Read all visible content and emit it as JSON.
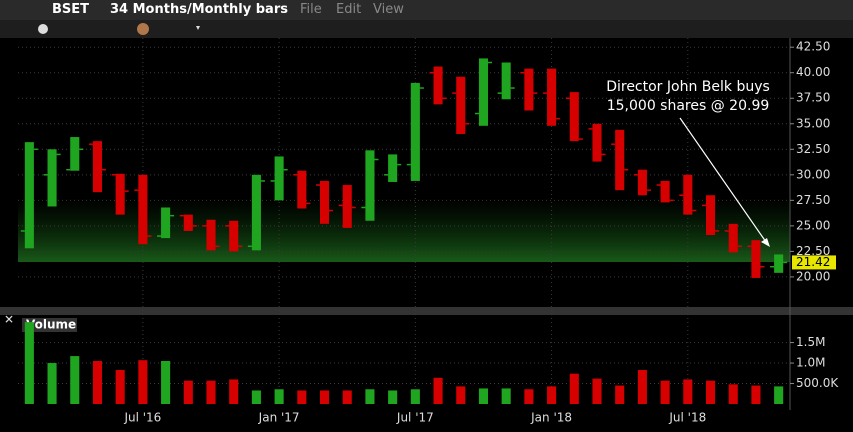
{
  "toolbar": {
    "symbol": "BSET",
    "period": "34 Months/Monthly bars",
    "menu": [
      "File",
      "Edit",
      "View"
    ]
  },
  "chart_data": {
    "type": "candlestick",
    "annotation": [
      "Director John Belk buys",
      "15,000 shares @ 20.99"
    ],
    "categories": [
      null,
      null,
      null,
      null,
      null,
      "Jul '16",
      null,
      null,
      null,
      null,
      null,
      "Jan '17",
      null,
      null,
      null,
      null,
      null,
      "Jul '17",
      null,
      null,
      null,
      null,
      null,
      "Jan '18",
      null,
      null,
      null,
      null,
      null,
      "Jul '18",
      null,
      null,
      null,
      null
    ],
    "open": [
      24.5,
      30.0,
      30.5,
      33.0,
      30.0,
      28.5,
      24.0,
      26.0,
      25.0,
      25.0,
      23.0,
      29.4,
      30.0,
      29.0,
      27.0,
      26.8,
      30.0,
      31.0,
      40.0,
      38.0,
      36.0,
      38.0,
      40.0,
      38.0,
      37.5,
      34.5,
      33.0,
      30.0,
      29.0,
      28.0,
      27.0,
      24.5,
      23.0,
      21.0
    ],
    "high": [
      33.2,
      32.5,
      33.7,
      33.3,
      30.1,
      30.0,
      26.8,
      26.1,
      25.6,
      25.5,
      30.0,
      31.8,
      30.4,
      29.4,
      29.0,
      32.4,
      32.0,
      39.0,
      40.6,
      39.6,
      41.4,
      41.0,
      40.4,
      40.4,
      38.1,
      35.0,
      34.4,
      30.5,
      29.4,
      30.0,
      28.0,
      25.2,
      23.6,
      22.2
    ],
    "low": [
      22.8,
      26.9,
      30.4,
      28.3,
      26.1,
      23.2,
      23.8,
      24.5,
      22.6,
      22.5,
      22.6,
      27.5,
      26.7,
      25.2,
      24.8,
      25.5,
      29.3,
      29.4,
      36.9,
      34.0,
      34.8,
      37.4,
      36.3,
      34.8,
      33.3,
      31.3,
      28.5,
      28.0,
      27.3,
      26.1,
      24.1,
      22.4,
      19.9,
      20.4
    ],
    "close": [
      32.5,
      32.0,
      32.5,
      30.5,
      28.4,
      24.0,
      26.0,
      25.0,
      23.0,
      23.0,
      29.4,
      30.5,
      27.2,
      26.5,
      26.8,
      31.5,
      31.0,
      38.5,
      37.5,
      35.0,
      41.0,
      38.5,
      38.0,
      35.5,
      33.5,
      32.0,
      30.5,
      28.5,
      27.5,
      26.5,
      24.5,
      23.0,
      21.0,
      21.42
    ],
    "up_color": "#1fa51f",
    "down_color": "#d70000",
    "ylim": [
      17.25,
      43.4
    ],
    "yticks": [
      {
        "value": 20,
        "label": "20.00"
      },
      {
        "value": 22.5,
        "label": "22.50"
      },
      {
        "value": 25,
        "label": "25.00"
      },
      {
        "value": 27.5,
        "label": "27.50"
      },
      {
        "value": 30,
        "label": "30.00"
      },
      {
        "value": 32.5,
        "label": "32.50"
      },
      {
        "value": 35,
        "label": "35.00"
      },
      {
        "value": 37.5,
        "label": "37.50"
      },
      {
        "value": 40,
        "label": "40.00"
      },
      {
        "value": 42.5,
        "label": "42.50"
      }
    ],
    "grid": true,
    "volume": {
      "title": "Volume",
      "values": [
        2000000,
        1000000,
        1170000,
        1050000,
        830000,
        1070000,
        1050000,
        570000,
        570000,
        600000,
        330000,
        360000,
        330000,
        330000,
        330000,
        360000,
        330000,
        360000,
        640000,
        430000,
        380000,
        380000,
        360000,
        430000,
        740000,
        620000,
        450000,
        830000,
        570000,
        600000,
        570000,
        480000,
        450000,
        430000
      ],
      "ylim": [
        0,
        2100000
      ],
      "yticks": [
        {
          "value": 500000,
          "label": "500.0K"
        },
        {
          "value": 1000000,
          "label": "1.0M"
        },
        {
          "value": 1500000,
          "label": "1.5M"
        }
      ]
    }
  }
}
